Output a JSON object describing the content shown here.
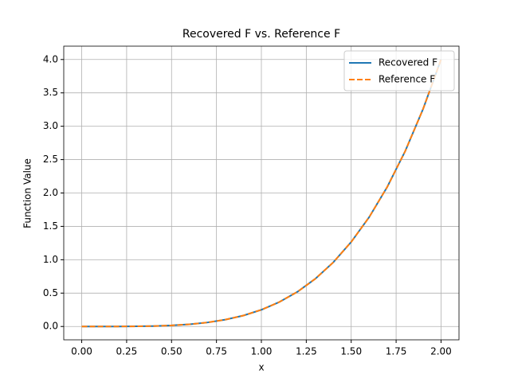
{
  "chart_data": {
    "type": "line",
    "title": "Recovered F vs. Reference F",
    "x_label": "x",
    "y_label": "Function Value",
    "x": [
      0,
      0.1,
      0.2,
      0.3,
      0.4,
      0.5,
      0.6,
      0.7,
      0.8,
      0.9,
      1.0,
      1.1,
      1.2,
      1.3,
      1.4,
      1.5,
      1.6,
      1.7,
      1.8,
      1.9,
      2.0
    ],
    "series": [
      {
        "name": "Recovered F",
        "color": "#1f77b4",
        "linestyle": "solid",
        "values": [
          0,
          0,
          0.0004,
          0.002,
          0.0064,
          0.0156,
          0.0324,
          0.06,
          0.1024,
          0.164,
          0.25,
          0.366,
          0.518,
          0.714,
          0.96,
          1.266,
          1.638,
          2.088,
          2.624,
          3.258,
          4.0
        ]
      },
      {
        "name": "Reference F",
        "color": "#ff7f0e",
        "linestyle": "dashed",
        "values": [
          0,
          0,
          0.0004,
          0.002,
          0.0064,
          0.0156,
          0.0324,
          0.06,
          0.1024,
          0.164,
          0.25,
          0.366,
          0.518,
          0.714,
          0.96,
          1.266,
          1.638,
          2.088,
          2.624,
          3.258,
          4.0
        ]
      }
    ],
    "xlim": [
      -0.1,
      2.1
    ],
    "xticks": [
      {
        "value": 0,
        "label": "0.00"
      },
      {
        "value": 0.25,
        "label": "0.25"
      },
      {
        "value": 0.5,
        "label": "0.50"
      },
      {
        "value": 0.75,
        "label": "0.75"
      },
      {
        "value": 1,
        "label": "1.00"
      },
      {
        "value": 1.25,
        "label": "1.25"
      },
      {
        "value": 1.5,
        "label": "1.50"
      },
      {
        "value": 1.75,
        "label": "1.75"
      },
      {
        "value": 2,
        "label": "2.00"
      }
    ],
    "ylim": [
      -0.2,
      4.2
    ],
    "yticks": [
      {
        "value": 0,
        "label": "0.0"
      },
      0.5,
      {
        "value": 1,
        "label": "1.0"
      },
      1.5,
      {
        "value": 2,
        "label": "2.0"
      },
      2.5,
      {
        "value": 3,
        "label": "3.0"
      },
      3.5,
      {
        "value": 4,
        "label": "4.0"
      }
    ],
    "grid": true,
    "legend": "upper right"
  }
}
